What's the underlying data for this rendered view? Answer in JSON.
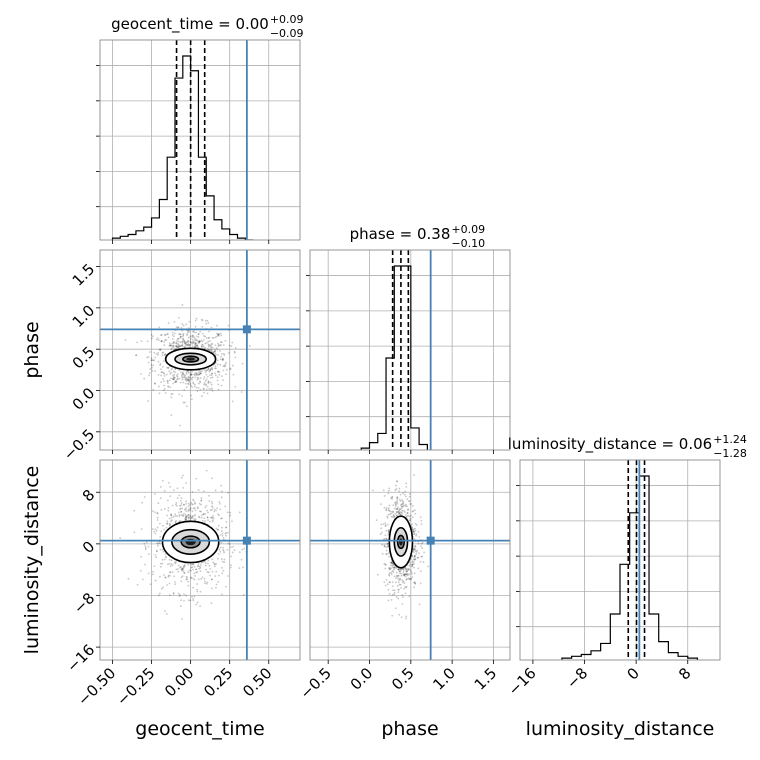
{
  "chart_data": {
    "type": "corner",
    "grid": true,
    "truth_color": "#4682b4",
    "parameters": [
      {
        "name": "geocent_time",
        "title_main": "geocent_time = 0.00",
        "title_plus": "+0.09",
        "title_minus": "−0.09",
        "median": 0.0,
        "q16": -0.09,
        "q84": 0.09,
        "truth": 0.36,
        "range": [
          -0.58,
          0.7
        ],
        "ticks": [
          -0.5,
          -0.25,
          0.0,
          0.25,
          0.5
        ],
        "tick_labels": [
          "−0.50",
          "−0.25",
          "0.00",
          "0.25",
          "0.50"
        ],
        "hist": {
          "bin_edges": [
            -0.5,
            -0.45,
            -0.4,
            -0.35,
            -0.3,
            -0.25,
            -0.2,
            -0.15,
            -0.1,
            -0.05,
            0.0,
            0.05,
            0.1,
            0.15,
            0.2,
            0.25,
            0.3,
            0.35,
            0.4
          ],
          "counts": [
            0.01,
            0.02,
            0.03,
            0.05,
            0.07,
            0.12,
            0.22,
            0.45,
            0.88,
            1.0,
            0.92,
            0.45,
            0.24,
            0.11,
            0.06,
            0.03,
            0.01,
            0.0
          ]
        }
      },
      {
        "name": "phase",
        "title_main": "phase = 0.38",
        "title_plus": "+0.09",
        "title_minus": "−0.10",
        "median": 0.38,
        "q16": 0.28,
        "q84": 0.47,
        "truth": 0.74,
        "range": [
          -0.72,
          1.7
        ],
        "ticks": [
          -0.5,
          0.0,
          0.5,
          1.0,
          1.5
        ],
        "tick_labels": [
          "−0.5",
          "0.0",
          "0.5",
          "1.0",
          "1.5"
        ],
        "hist": {
          "bin_edges": [
            -0.1,
            0.0,
            0.1,
            0.2,
            0.3,
            0.4,
            0.5,
            0.6,
            0.7
          ],
          "counts": [
            0.01,
            0.04,
            0.09,
            0.5,
            1.0,
            1.0,
            0.12,
            0.03
          ]
        }
      },
      {
        "name": "luminosity_distance",
        "title_main": "luminosity_distance = 0.06",
        "title_plus": "+1.24",
        "title_minus": "−1.28",
        "median": 0.06,
        "q16": -1.22,
        "q84": 1.3,
        "truth": 0.5,
        "range": [
          -18.0,
          13.0
        ],
        "ticks": [
          -16,
          -8,
          0,
          8
        ],
        "tick_labels": [
          "−16",
          "−8",
          "0",
          "8"
        ],
        "hist": {
          "bin_edges": [
            -11.5,
            -10,
            -8.5,
            -7,
            -5.5,
            -4,
            -2.5,
            -1,
            0.5,
            2,
            3.5,
            5,
            6.5,
            8,
            9.5
          ],
          "counts": [
            0.01,
            0.02,
            0.03,
            0.05,
            0.09,
            0.25,
            0.52,
            0.8,
            1.0,
            0.25,
            0.1,
            0.04,
            0.02,
            0.01
          ]
        }
      }
    ],
    "pair_panels": [
      {
        "x": "geocent_time",
        "y": "phase",
        "center": [
          0.0,
          0.38
        ],
        "spread": [
          0.09,
          0.09
        ],
        "scatter_spread": [
          0.12,
          0.2
        ],
        "contour_radii": [
          [
            0.05,
            0.035
          ],
          [
            0.1,
            0.07
          ],
          [
            0.16,
            0.13
          ]
        ]
      },
      {
        "x": "geocent_time",
        "y": "luminosity_distance",
        "center": [
          0.0,
          0.3
        ],
        "spread": [
          0.09,
          1.3
        ],
        "scatter_spread": [
          0.12,
          3.8
        ],
        "contour_radii": [
          [
            0.06,
            0.9
          ],
          [
            0.12,
            1.9
          ],
          [
            0.18,
            3.2
          ]
        ]
      },
      {
        "x": "phase",
        "y": "luminosity_distance",
        "center": [
          0.38,
          0.3
        ],
        "spread": [
          0.09,
          1.3
        ],
        "scatter_spread": [
          0.1,
          3.8
        ],
        "contour_radii": [
          [
            0.04,
            1.0
          ],
          [
            0.08,
            2.2
          ],
          [
            0.14,
            4.0
          ]
        ]
      }
    ]
  }
}
